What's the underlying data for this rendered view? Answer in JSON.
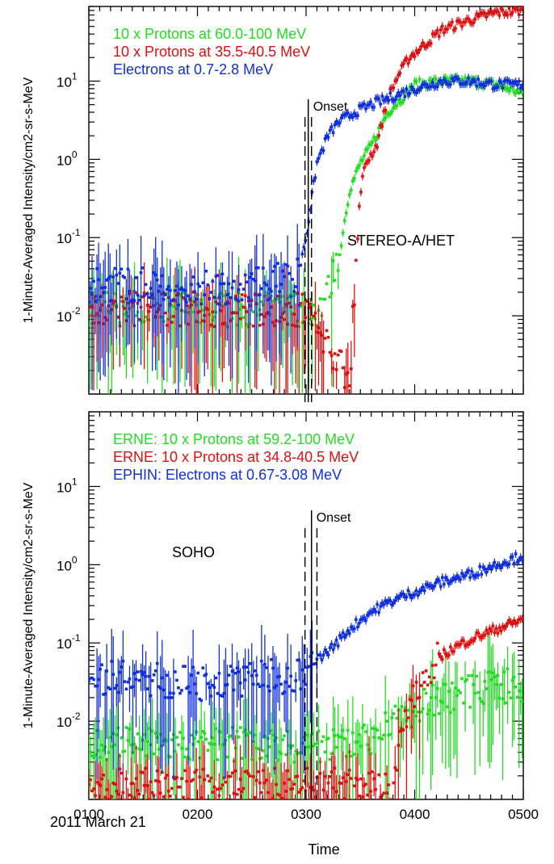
{
  "xlabel": "Time",
  "date_label": "2011 March 21",
  "chart_data": [
    {
      "type": "scatter",
      "name": "STEREO-A/HET",
      "ylabel": "1-Minute-Averaged Intensity/cm2-sr-s-MeV",
      "y_scale": "log",
      "ylim": [
        0.001,
        90
      ],
      "xlim": [
        100,
        500
      ],
      "x_ticks": [
        "0100",
        "0200",
        "0300",
        "0400",
        "0500"
      ],
      "y_ticks": [
        {
          "base": "10",
          "exp": "-2"
        },
        {
          "base": "10",
          "exp": "-1"
        },
        {
          "base": "10",
          "exp": "0"
        },
        {
          "base": "10",
          "exp": "1"
        }
      ],
      "panel_label": "STEREO-A/HET",
      "onset_label": "Onset",
      "onset_time": 302,
      "onset_window": [
        299,
        305
      ],
      "legend": [
        {
          "text": "10 x Protons at 60.0-100 MeV",
          "color": "#22dd22"
        },
        {
          "text": "10 x Protons at 35.5-40.5 MeV",
          "color": "#e01010"
        },
        {
          "text": "Electrons at 0.7-2.8 MeV",
          "color": "#1030e0"
        }
      ],
      "series": [
        {
          "name": "10 x Protons at 60.0-100 MeV",
          "color": "#22dd22",
          "points": [
            [
              100,
              0.013
            ],
            [
              150,
              0.013
            ],
            [
              200,
              0.012
            ],
            [
              250,
              0.012
            ],
            [
              290,
              0.012
            ],
            [
              310,
              0.012
            ],
            [
              320,
              0.02
            ],
            [
              330,
              0.05
            ],
            [
              335,
              0.15
            ],
            [
              340,
              0.4
            ],
            [
              350,
              0.9
            ],
            [
              360,
              1.5
            ],
            [
              375,
              4
            ],
            [
              400,
              9
            ],
            [
              425,
              10
            ],
            [
              450,
              10
            ],
            [
              475,
              9
            ],
            [
              500,
              7
            ]
          ]
        },
        {
          "name": "10 x Protons at 35.5-40.5 MeV",
          "color": "#e01010",
          "points": [
            [
              100,
              0.012
            ],
            [
              200,
              0.012
            ],
            [
              300,
              0.012
            ],
            [
              340,
              0.0015
            ],
            [
              350,
              0.4
            ],
            [
              355,
              0.9
            ],
            [
              365,
              1.5
            ],
            [
              375,
              6
            ],
            [
              385,
              12
            ],
            [
              395,
              20
            ],
            [
              410,
              30
            ],
            [
              425,
              45
            ],
            [
              450,
              60
            ],
            [
              475,
              75
            ],
            [
              500,
              80
            ]
          ]
        },
        {
          "name": "Electrons at 0.7-2.8 MeV",
          "color": "#1030e0",
          "points": [
            [
              100,
              0.025
            ],
            [
              150,
              0.025
            ],
            [
              200,
              0.022
            ],
            [
              250,
              0.025
            ],
            [
              290,
              0.03
            ],
            [
              300,
              0.1
            ],
            [
              305,
              0.3
            ],
            [
              310,
              0.9
            ],
            [
              320,
              2
            ],
            [
              330,
              3
            ],
            [
              345,
              4
            ],
            [
              360,
              5
            ],
            [
              375,
              6
            ],
            [
              400,
              8
            ],
            [
              425,
              10
            ],
            [
              450,
              10
            ],
            [
              475,
              9
            ],
            [
              500,
              9
            ]
          ]
        }
      ]
    },
    {
      "type": "scatter",
      "name": "SOHO",
      "ylabel": "1-Minute-Averaged Intensity/cm2-sr-s-MeV",
      "y_scale": "log",
      "ylim": [
        0.001,
        90
      ],
      "xlim": [
        100,
        500
      ],
      "x_ticks": [
        "0100",
        "0200",
        "0300",
        "0400",
        "0500"
      ],
      "y_ticks": [
        {
          "base": "10",
          "exp": "-2"
        },
        {
          "base": "10",
          "exp": "-1"
        },
        {
          "base": "10",
          "exp": "0"
        },
        {
          "base": "10",
          "exp": "1"
        }
      ],
      "panel_label": "SOHO",
      "onset_label": "Onset",
      "onset_time": 305,
      "onset_window": [
        299,
        310
      ],
      "legend": [
        {
          "text": "ERNE: 10 x Protons at 59.2-100 MeV",
          "color": "#22dd22"
        },
        {
          "text": "ERNE: 10 x Protons at 34.8-40.5 MeV",
          "color": "#e01010"
        },
        {
          "text": "EPHIN: Electrons at 0.67-3.08 MeV",
          "color": "#1030e0"
        }
      ],
      "series": [
        {
          "name": "ERNE: 10 x Protons at 59.2-100 MeV",
          "color": "#22dd22",
          "points": [
            [
              100,
              0.005
            ],
            [
              150,
              0.005
            ],
            [
              200,
              0.005
            ],
            [
              250,
              0.005
            ],
            [
              300,
              0.005
            ],
            [
              340,
              0.005
            ],
            [
              360,
              0.006
            ],
            [
              380,
              0.009
            ],
            [
              400,
              0.014
            ],
            [
              425,
              0.02
            ],
            [
              450,
              0.024
            ],
            [
              475,
              0.027
            ],
            [
              500,
              0.03
            ]
          ]
        },
        {
          "name": "ERNE: 10 x Protons at 34.8-40.5 MeV",
          "color": "#e01010",
          "points": [
            [
              100,
              0.0015
            ],
            [
              150,
              0.0015
            ],
            [
              200,
              0.0015
            ],
            [
              250,
              0.0015
            ],
            [
              300,
              0.0015
            ],
            [
              350,
              0.0015
            ],
            [
              380,
              0.0015
            ],
            [
              395,
              0.02
            ],
            [
              410,
              0.04
            ],
            [
              425,
              0.07
            ],
            [
              450,
              0.11
            ],
            [
              475,
              0.15
            ],
            [
              500,
              0.2
            ]
          ]
        },
        {
          "name": "EPHIN: Electrons at 0.67-3.08 MeV",
          "color": "#1030e0",
          "points": [
            [
              100,
              0.035
            ],
            [
              150,
              0.035
            ],
            [
              200,
              0.03
            ],
            [
              250,
              0.035
            ],
            [
              300,
              0.04
            ],
            [
              310,
              0.06
            ],
            [
              325,
              0.09
            ],
            [
              340,
              0.15
            ],
            [
              360,
              0.25
            ],
            [
              380,
              0.35
            ],
            [
              400,
              0.45
            ],
            [
              425,
              0.6
            ],
            [
              450,
              0.75
            ],
            [
              475,
              1.0
            ],
            [
              500,
              1.3
            ]
          ]
        }
      ]
    }
  ]
}
